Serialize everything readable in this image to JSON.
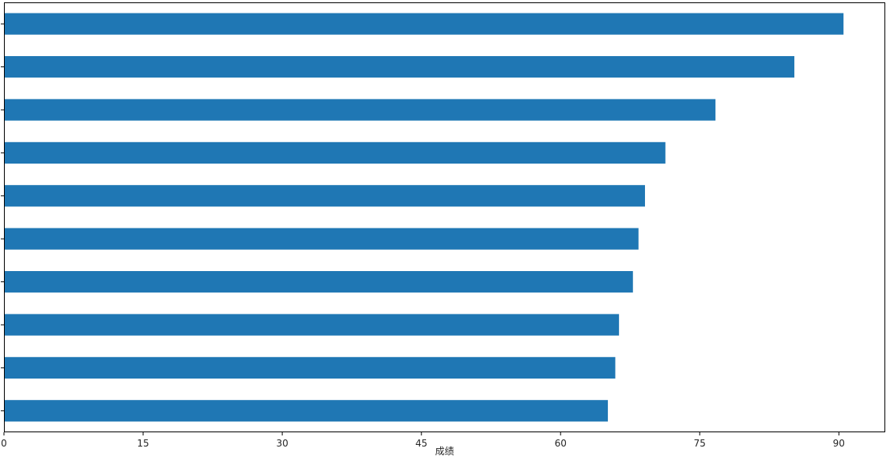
{
  "chart_data": {
    "type": "bar",
    "orientation": "horizontal",
    "title": "",
    "xlabel": "成绩",
    "ylabel": "",
    "xlim": [
      0,
      95
    ],
    "xticks": [
      0,
      15,
      30,
      45,
      60,
      75,
      90
    ],
    "grid": false,
    "legend": "none",
    "bar_color": "#1f77b4",
    "series": [
      {
        "values": [
          90.5,
          85.2,
          76.7,
          71.3,
          69.1,
          68.4,
          67.8,
          66.3,
          65.9,
          65.1
        ]
      }
    ]
  }
}
